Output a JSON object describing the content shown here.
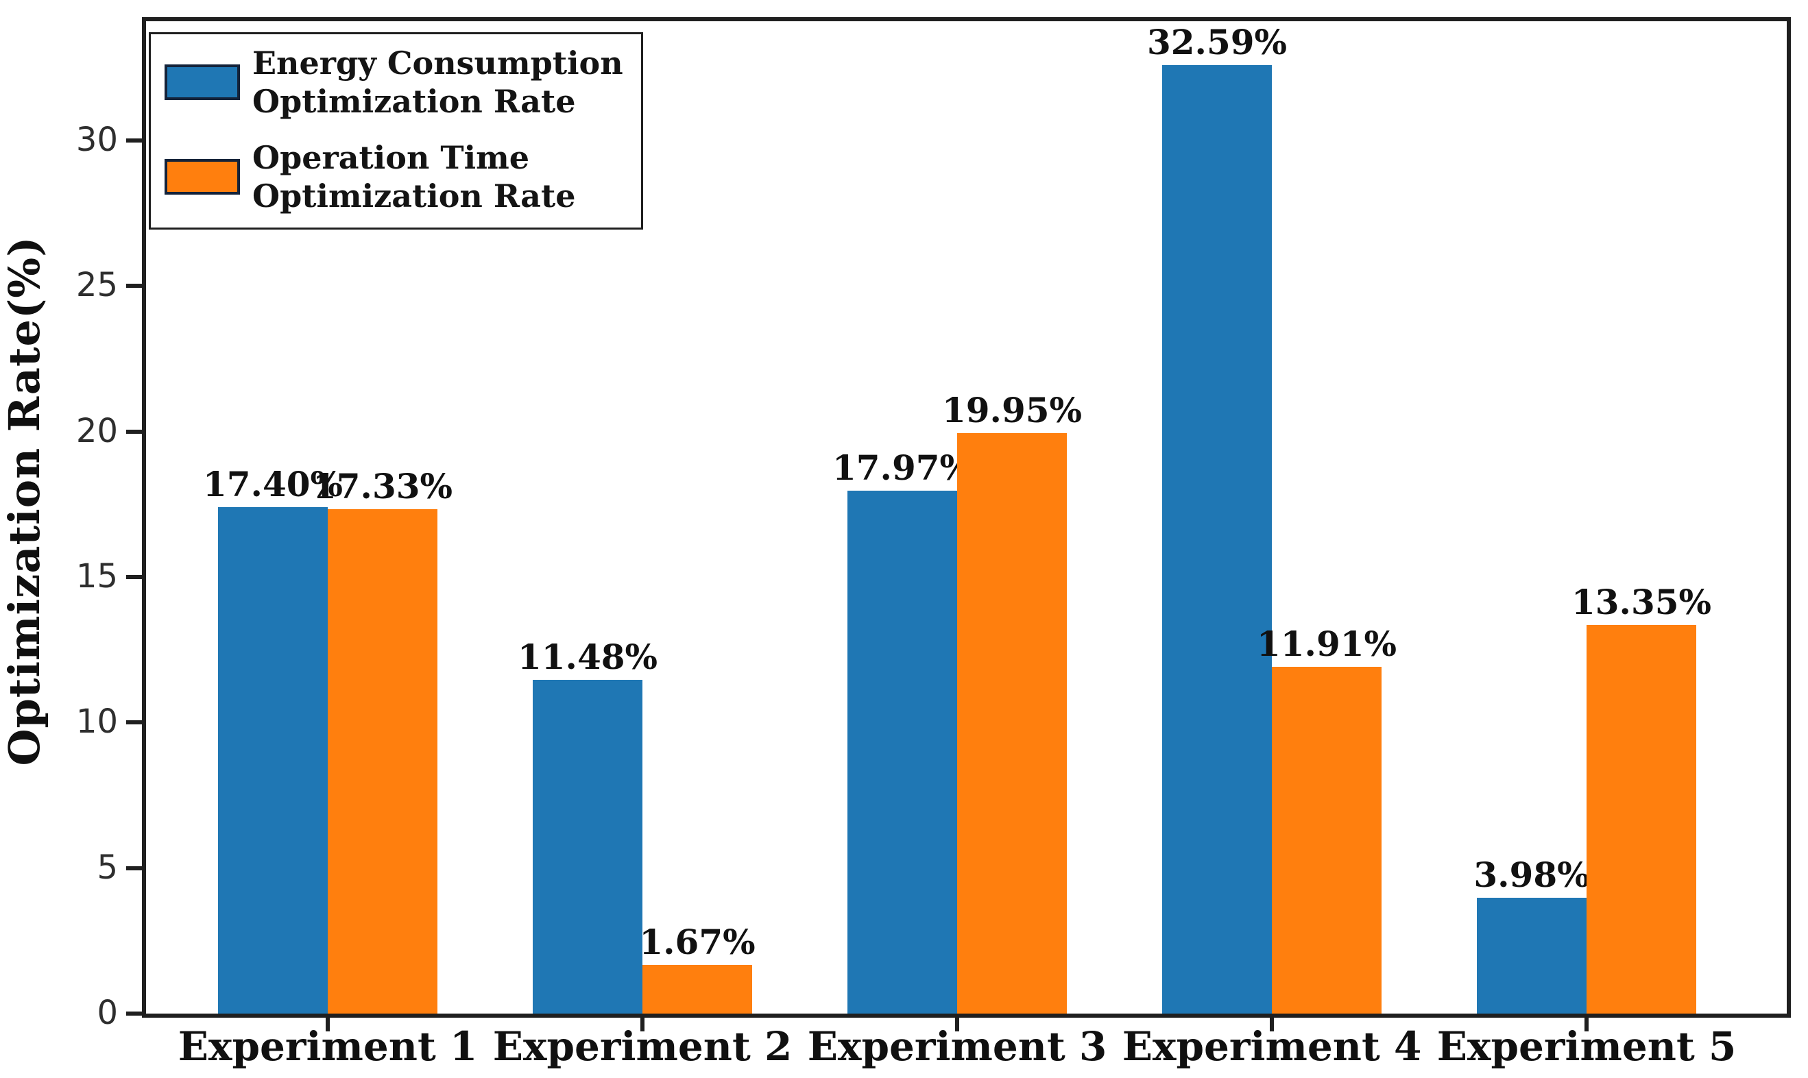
{
  "chart_data": {
    "type": "bar",
    "title": "",
    "categories": [
      "Experiment 1",
      "Experiment 2",
      "Experiment 3",
      "Experiment 4",
      "Experiment 5"
    ],
    "series": [
      {
        "name": "Energy Consumption Optimization Rate",
        "legend_lines": [
          "Energy Consumption",
          "Optimization Rate"
        ],
        "color": "#1f77b4",
        "values": [
          17.4,
          11.48,
          17.97,
          32.59,
          3.98
        ],
        "bar_labels": [
          "17.40%",
          "11.48%",
          "17.97%",
          "32.59%",
          "3.98%"
        ]
      },
      {
        "name": "Operation Time Optimization Rate",
        "legend_lines": [
          "Operation Time",
          "Optimization Rate"
        ],
        "color": "#ff7f0e",
        "values": [
          17.33,
          1.67,
          19.95,
          11.91,
          13.35
        ],
        "bar_labels": [
          "17.33%",
          "1.67%",
          "19.95%",
          "11.91%",
          "13.35%"
        ]
      }
    ],
    "xlabel": "",
    "ylabel": "Optimization Rate(%)",
    "yticks": [
      0,
      5,
      10,
      15,
      20,
      25,
      30
    ],
    "ylim": [
      0,
      34.1
    ],
    "grid": false,
    "legend_position": "upper-left"
  },
  "colors": {
    "bar_blue": "#1f77b4",
    "bar_orange": "#ff7f0e",
    "axis": "#1f1f1f",
    "tick_label": "#2e2e2e",
    "text": "#111111",
    "legend_swatch_edge": "#14233a",
    "background": "#ffffff"
  }
}
